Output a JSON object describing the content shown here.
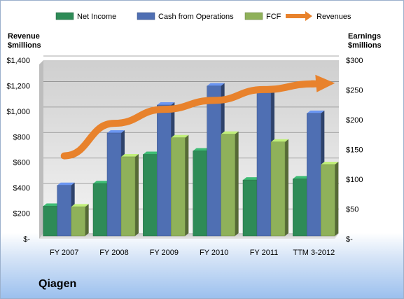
{
  "chart_data": {
    "type": "bar",
    "company": "Qiagen",
    "left_axis_title": [
      "Revenue",
      "$millions"
    ],
    "right_axis_title": [
      "Earnings",
      "$millions"
    ],
    "categories": [
      "FY 2007",
      "FY 2008",
      "FY 2009",
      "FY 2010",
      "FY 2011",
      "TTM 3-2012"
    ],
    "left_ticks": [
      "$-",
      "$200",
      "$400",
      "$600",
      "$800",
      "$1,000",
      "$1,200",
      "$1,400"
    ],
    "right_ticks": [
      "$-",
      "$50",
      "$100",
      "$150",
      "$200",
      "$250",
      "$300"
    ],
    "left_ylim": [
      0,
      1400
    ],
    "right_ylim": [
      0,
      300
    ],
    "series": [
      {
        "name": "Net Income",
        "axis": "right",
        "kind": "bar",
        "color": "#2e8b57",
        "values": [
          50,
          88,
          137,
          143,
          94,
          96
        ]
      },
      {
        "name": "Cash from Operations",
        "axis": "right",
        "kind": "bar",
        "color": "#4f6fb3",
        "values": [
          85,
          173,
          220,
          252,
          245,
          206
        ]
      },
      {
        "name": "FCF",
        "axis": "right",
        "kind": "bar",
        "color": "#8fb15a",
        "values": [
          49,
          133,
          165,
          171,
          158,
          120
        ]
      },
      {
        "name": "Revenues",
        "axis": "left",
        "kind": "line",
        "color": "#e8822c",
        "values": [
          650,
          905,
          1015,
          1085,
          1170,
          1215
        ]
      }
    ],
    "legend_position": "top",
    "grid": true
  }
}
